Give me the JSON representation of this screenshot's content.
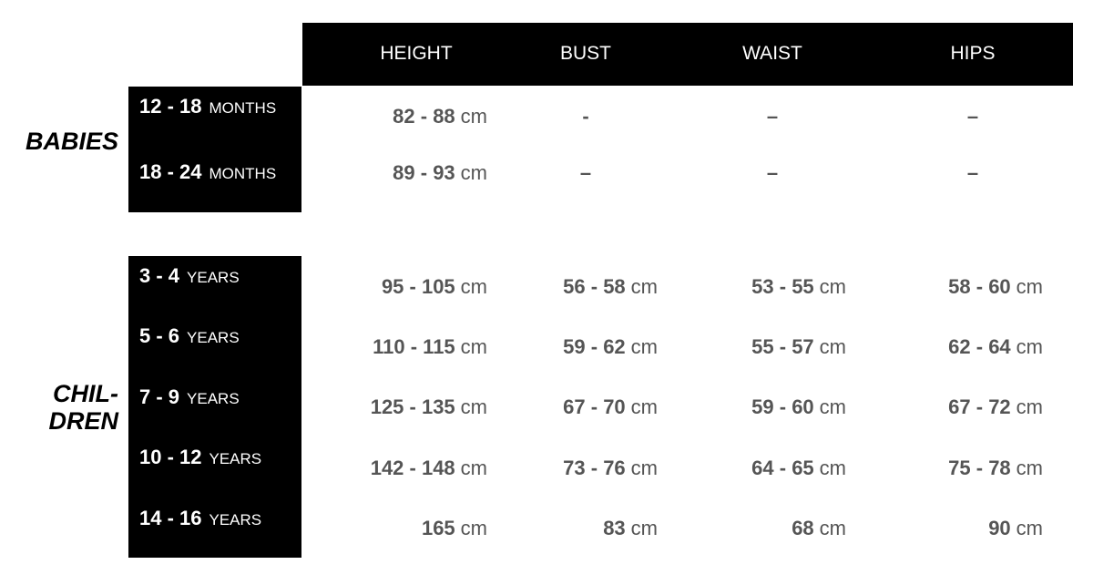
{
  "header": {
    "columns": [
      "HEIGHT",
      "BUST",
      "WAIST",
      "HIPS"
    ]
  },
  "groups": [
    {
      "label": [
        "BABIES"
      ],
      "rows": [
        {
          "range": "12 - 18",
          "unit": "MONTHS",
          "cells": [
            {
              "value": "82 - 88",
              "unit": "cm"
            },
            {
              "value": "-"
            },
            {
              "value": "–"
            },
            {
              "value": "–"
            }
          ]
        },
        {
          "range": "18 - 24",
          "unit": "MONTHS",
          "cells": [
            {
              "value": "89 - 93",
              "unit": "cm"
            },
            {
              "value": "–"
            },
            {
              "value": "–"
            },
            {
              "value": "–"
            }
          ]
        }
      ]
    },
    {
      "label": [
        "CHIL-",
        "DREN"
      ],
      "rows": [
        {
          "range": "3 - 4",
          "unit": "YEARS",
          "cells": [
            {
              "value": "95 - 105",
              "unit": "cm"
            },
            {
              "value": "56 - 58",
              "unit": "cm"
            },
            {
              "value": "53 - 55",
              "unit": "cm"
            },
            {
              "value": "58 - 60",
              "unit": "cm"
            }
          ]
        },
        {
          "range": "5 - 6",
          "unit": "YEARS",
          "cells": [
            {
              "value": "110 - 115",
              "unit": "cm"
            },
            {
              "value": "59 - 62",
              "unit": "cm"
            },
            {
              "value": "55 - 57",
              "unit": "cm"
            },
            {
              "value": "62 - 64",
              "unit": "cm"
            }
          ]
        },
        {
          "range": "7 - 9",
          "unit": "YEARS",
          "cells": [
            {
              "value": "125 - 135",
              "unit": "cm"
            },
            {
              "value": "67 - 70",
              "unit": "cm"
            },
            {
              "value": "59 - 60",
              "unit": "cm"
            },
            {
              "value": "67 - 72",
              "unit": "cm"
            }
          ]
        },
        {
          "range": "10 - 12",
          "unit": "YEARS",
          "cells": [
            {
              "value": "142 - 148",
              "unit": "cm"
            },
            {
              "value": "73 - 76",
              "unit": "cm"
            },
            {
              "value": "64 - 65",
              "unit": "cm"
            },
            {
              "value": "75 - 78",
              "unit": "cm"
            }
          ]
        },
        {
          "range": "14 - 16",
          "unit": "YEARS",
          "cells": [
            {
              "value": "165",
              "unit": "cm"
            },
            {
              "value": "83",
              "unit": "cm"
            },
            {
              "value": "68",
              "unit": "cm"
            },
            {
              "value": "90",
              "unit": "cm"
            }
          ]
        }
      ]
    }
  ]
}
